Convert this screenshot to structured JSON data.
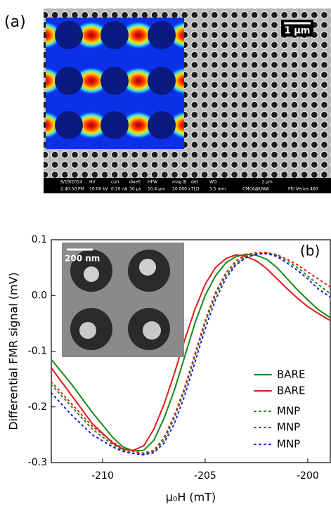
{
  "panel_a": {
    "label": "(a)",
    "scale_bar": "1 μm",
    "info_bar": [
      "6/19/2014",
      "2:40:50 PM",
      "HV",
      "10.00 kV",
      "curr",
      "0.10 nA",
      "dwell",
      "30 μs",
      "HFW",
      "10.4 μm",
      "mag ⊞",
      "20 000 x",
      "det",
      "TLD",
      "WD",
      "3.5 mm",
      "2 μm",
      "CMCA@UWA",
      "FEI Verios 460"
    ]
  },
  "chart_data": {
    "type": "line",
    "label": "(b)",
    "inset_scale_bar": "200 nm",
    "x_label": "μ₀H (mT)",
    "y_label": "Differential FMR signal (mV)",
    "x": [
      -212.5,
      -211.5,
      -210.5,
      -209.5,
      -209,
      -208.5,
      -208,
      -207.5,
      -207,
      -206.5,
      -206,
      -205.5,
      -205,
      -204.5,
      -204,
      -203.5,
      -203,
      -202.5,
      -202,
      -201.5,
      -201,
      -200.5,
      -200,
      -199.5,
      -198.9
    ],
    "xlim": [
      -212.5,
      -198.9
    ],
    "xticks": [
      -210,
      -205,
      -200
    ],
    "ylim": [
      -0.3,
      0.1
    ],
    "yticks": [
      -0.3,
      -0.2,
      -0.1,
      {
        "value": 0,
        "label": "0.0"
      },
      0.1
    ],
    "legend": "lower right",
    "series": [
      {
        "name": "BARE",
        "color": "#138a13",
        "style": "solid",
        "values": [
          -0.115,
          -0.16,
          -0.21,
          -0.255,
          -0.272,
          -0.279,
          -0.278,
          -0.26,
          -0.22,
          -0.17,
          -0.11,
          -0.05,
          0.0,
          0.035,
          0.058,
          0.07,
          0.074,
          0.072,
          0.065,
          0.05,
          0.03,
          0.01,
          -0.008,
          -0.025,
          -0.04
        ]
      },
      {
        "name": "BARE",
        "color": "#e31a1a",
        "style": "solid",
        "values": [
          -0.13,
          -0.18,
          -0.23,
          -0.265,
          -0.276,
          -0.278,
          -0.27,
          -0.24,
          -0.195,
          -0.14,
          -0.08,
          -0.025,
          0.02,
          0.05,
          0.066,
          0.073,
          0.07,
          0.062,
          0.048,
          0.03,
          0.012,
          -0.005,
          -0.02,
          -0.032,
          -0.045
        ]
      },
      {
        "name": "MNP",
        "color": "#138a13",
        "style": "dotted",
        "values": [
          -0.16,
          -0.2,
          -0.24,
          -0.268,
          -0.278,
          -0.283,
          -0.285,
          -0.28,
          -0.26,
          -0.22,
          -0.17,
          -0.11,
          -0.05,
          0.0,
          0.035,
          0.058,
          0.07,
          0.075,
          0.076,
          0.072,
          0.062,
          0.05,
          0.035,
          0.02,
          0.003
        ]
      },
      {
        "name": "MNP",
        "color": "#e31a1a",
        "style": "dotted",
        "values": [
          -0.155,
          -0.195,
          -0.235,
          -0.263,
          -0.275,
          -0.28,
          -0.283,
          -0.278,
          -0.255,
          -0.215,
          -0.165,
          -0.105,
          -0.045,
          0.005,
          0.04,
          0.062,
          0.073,
          0.077,
          0.077,
          0.073,
          0.065,
          0.055,
          0.042,
          0.03,
          0.015
        ]
      },
      {
        "name": "MNP",
        "color": "#1a1ae3",
        "style": "dotted",
        "values": [
          -0.175,
          -0.215,
          -0.25,
          -0.272,
          -0.28,
          -0.284,
          -0.286,
          -0.282,
          -0.265,
          -0.23,
          -0.18,
          -0.12,
          -0.06,
          -0.008,
          0.03,
          0.055,
          0.068,
          0.074,
          0.075,
          0.07,
          0.058,
          0.045,
          0.03,
          0.012,
          -0.003
        ]
      }
    ]
  }
}
